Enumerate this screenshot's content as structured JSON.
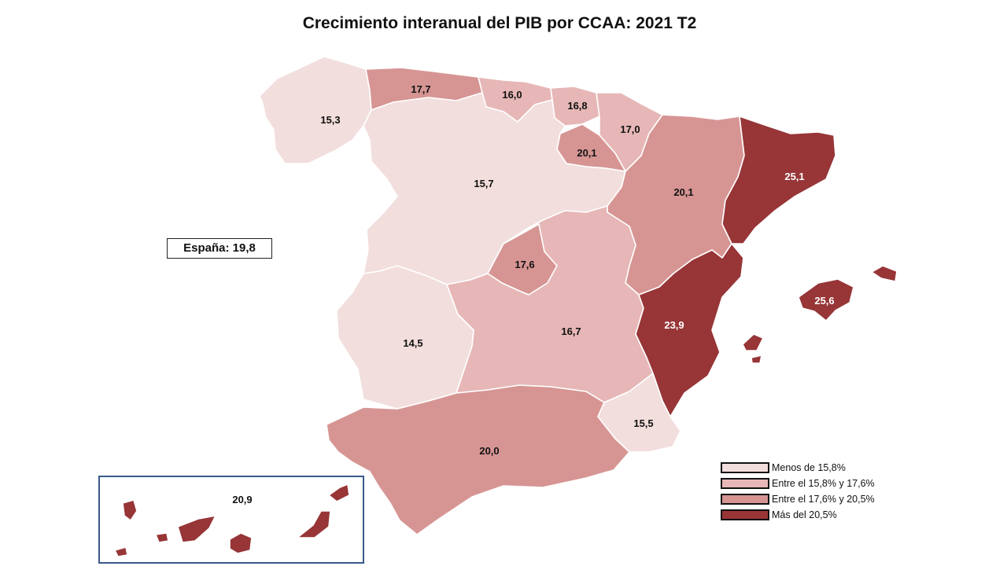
{
  "title": "Crecimiento interanual del PIB por CCAA: 2021 T2",
  "spain_label": "España:",
  "spain_value": "19,8",
  "colors": {
    "c1": "#f2dedd",
    "c2": "#e6b7b6",
    "c3": "#d69593",
    "c4": "#973537",
    "text_dark": "#111111",
    "text_light": "#ffffff",
    "inset_border": "#3a5a8a"
  },
  "legend": [
    {
      "label": "Menos de 15,8%",
      "color": "#f2dedd"
    },
    {
      "label": "Entre el 15,8% y 17,6%",
      "color": "#e6b7b6"
    },
    {
      "label": "Entre el 17,6% y 20,5%",
      "color": "#d69593"
    },
    {
      "label": "Más del 20,5%",
      "color": "#973537"
    }
  ],
  "regions": {
    "galicia": "15,3",
    "asturias": "17,7",
    "cantabria": "16,0",
    "pais_vasco": "16,8",
    "navarra": "17,0",
    "la_rioja": "20,1",
    "castilla_leon": "15,7",
    "aragon": "20,1",
    "cataluna": "25,1",
    "madrid": "17,6",
    "castilla_la_mancha": "16,7",
    "extremadura": "14,5",
    "valencia": "23,9",
    "baleares": "25,6",
    "murcia": "15,5",
    "andalucia": "20,0",
    "canarias": "20,9"
  }
}
